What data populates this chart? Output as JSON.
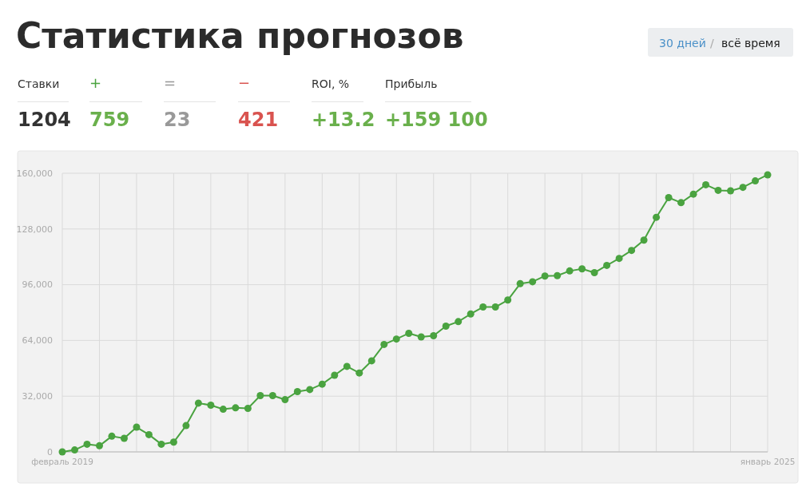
{
  "chart_data": [
    {
      "type": "other",
      "title": "Статистика прогнозов",
      "annotations": [
        "30 дней",
        "/",
        "всё время",
        "Ставки",
        "1204",
        "+",
        "759",
        "=",
        "23",
        "−",
        "421",
        "ROI, %",
        "+13.2",
        "Прибыль",
        "+159 100"
      ]
    },
    {
      "type": "line",
      "categories": [
        "февраль 2019",
        null,
        null,
        null,
        null,
        null,
        null,
        null,
        null,
        null,
        null,
        null,
        null,
        null,
        null,
        null,
        null,
        null,
        null,
        null,
        null,
        null,
        null,
        null,
        null,
        null,
        null,
        null,
        null,
        null,
        null,
        null,
        null,
        null,
        null,
        null,
        null,
        null,
        null,
        null,
        null,
        null,
        null,
        null,
        null,
        null,
        null,
        null,
        null,
        null,
        null,
        null,
        null,
        null,
        null,
        null,
        null,
        "январь 2025"
      ],
      "series": [
        {
          "color": "#4aa340",
          "values": [
            0,
            1100,
            4400,
            3500,
            9000,
            7800,
            14200,
            9900,
            4400,
            5600,
            15100,
            28000,
            26800,
            24500,
            25300,
            25000,
            32300,
            32300,
            30000,
            34600,
            35800,
            38900,
            44000,
            49100,
            45300,
            52300,
            61700,
            64800,
            68100,
            66000,
            66700,
            72200,
            74800,
            79200,
            83200,
            83200,
            87200,
            96600,
            97700,
            101000,
            101200,
            103900,
            105100,
            102900,
            107100,
            111100,
            115700,
            121600,
            134700,
            146000,
            143100,
            148000,
            153400,
            150200,
            149900,
            151900,
            155600,
            159100
          ]
        }
      ],
      "ylim": [
        0,
        160000
      ],
      "yticks": [
        {
          "value": 0,
          "label": "0"
        },
        {
          "value": 32000,
          "label": "32,000"
        },
        {
          "value": 64000,
          "label": "64,000"
        },
        {
          "value": 96000,
          "label": "96,000"
        },
        {
          "value": 128000,
          "label": "128,000"
        },
        {
          "value": 160000,
          "label": "160,000"
        }
      ],
      "grid": true,
      "marker": "circle",
      "line_style": "solid"
    }
  ]
}
